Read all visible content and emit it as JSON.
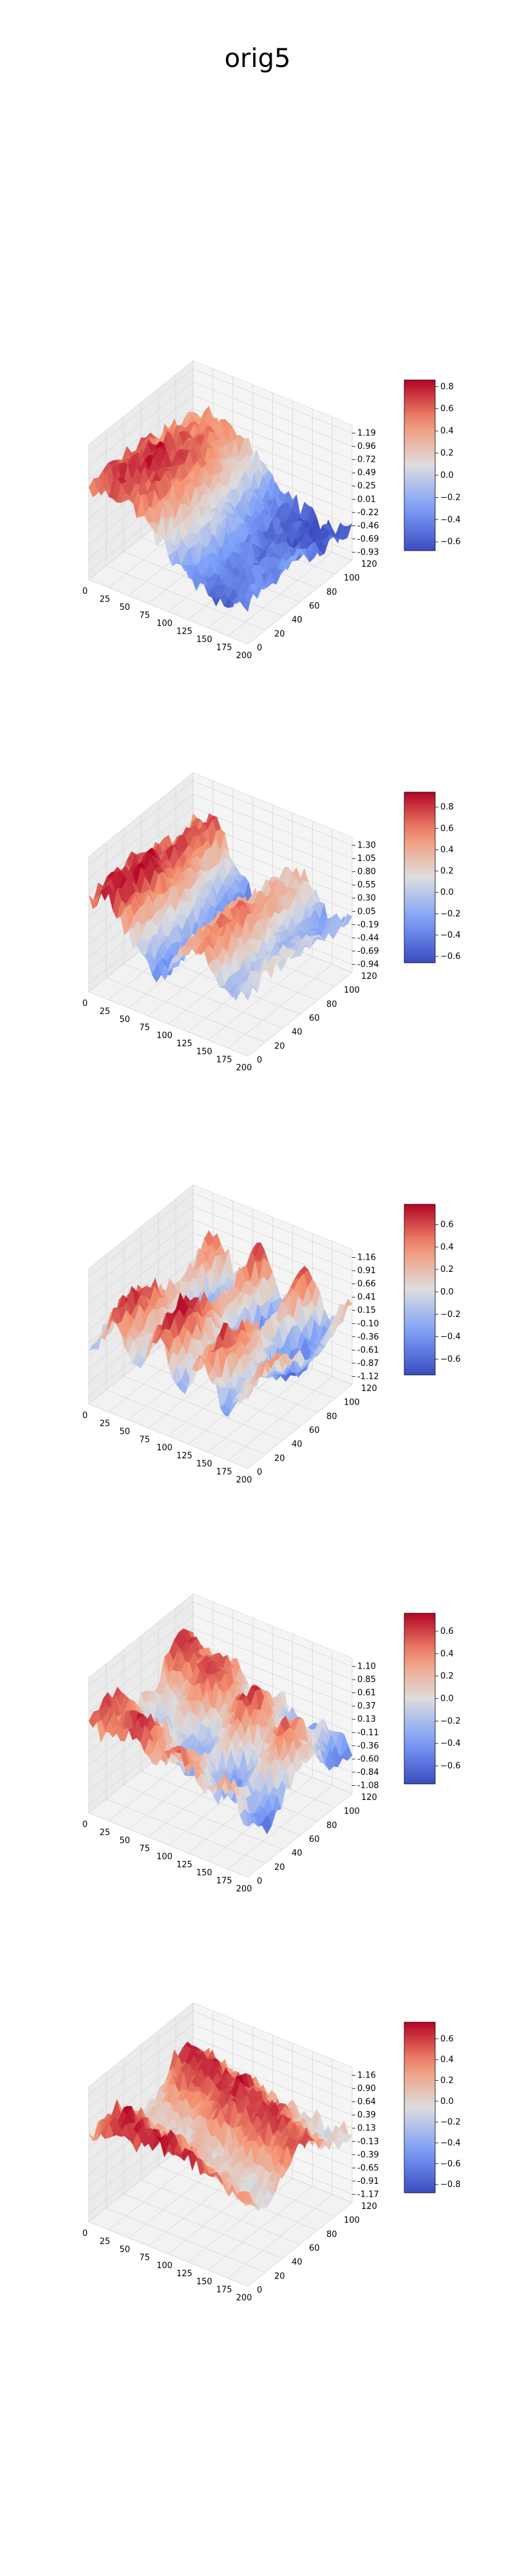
{
  "figure": {
    "title": "orig5"
  },
  "chart_data": [
    {
      "type": "surface3d",
      "x_ticks": [
        "0",
        "25",
        "50",
        "75",
        "100",
        "125",
        "150",
        "175",
        "200"
      ],
      "y_ticks": [
        "0",
        "20",
        "40",
        "60",
        "80",
        "100",
        "120"
      ],
      "z_ticks": [
        "1.19",
        "0.96",
        "0.72",
        "0.49",
        "0.25",
        "0.01",
        "-0.22",
        "-0.46",
        "-0.69",
        "-0.93"
      ],
      "colorbar_ticks": [
        "0.8",
        "0.6",
        "0.4",
        "0.2",
        "0.0",
        "−0.2",
        "−0.4",
        "−0.6"
      ],
      "colorbar_range": [
        -0.68,
        0.86
      ],
      "colormap": "coolwarm",
      "pattern": "wave",
      "profile": [
        0.55,
        0.7,
        0.62,
        0.15,
        -0.25,
        -0.55,
        -0.62,
        -0.45
      ]
    },
    {
      "type": "surface3d",
      "x_ticks": [
        "0",
        "25",
        "50",
        "75",
        "100",
        "125",
        "150",
        "175",
        "200"
      ],
      "y_ticks": [
        "0",
        "20",
        "40",
        "60",
        "80",
        "100",
        "120"
      ],
      "z_ticks": [
        "1.30",
        "1.05",
        "0.80",
        "0.55",
        "0.30",
        "0.05",
        "-0.19",
        "-0.44",
        "-0.69",
        "-0.94"
      ],
      "colorbar_ticks": [
        "0.8",
        "0.6",
        "0.4",
        "0.2",
        "0.0",
        "−0.2",
        "−0.4",
        "−0.6"
      ],
      "colorbar_range": [
        -0.66,
        0.94
      ],
      "colormap": "coolwarm",
      "pattern": "wave",
      "profile": [
        0.7,
        0.9,
        0.1,
        -0.5,
        0.4,
        0.55,
        -0.2,
        0.05
      ]
    },
    {
      "type": "surface3d",
      "x_ticks": [
        "0",
        "25",
        "50",
        "75",
        "100",
        "125",
        "150",
        "175",
        "200"
      ],
      "y_ticks": [
        "0",
        "20",
        "40",
        "60",
        "80",
        "100",
        "120"
      ],
      "z_ticks": [
        "1.16",
        "0.91",
        "0.66",
        "0.41",
        "0.15",
        "-0.10",
        "-0.36",
        "-0.61",
        "-0.87",
        "-1.12"
      ],
      "colorbar_ticks": [
        "0.6",
        "0.4",
        "0.2",
        "0.0",
        "−0.2",
        "−0.4",
        "−0.6"
      ],
      "colorbar_range": [
        -0.74,
        0.78
      ],
      "colormap": "coolwarm",
      "pattern": "ridges",
      "profile": [
        -0.4,
        0.6,
        -0.3,
        0.75,
        -0.4,
        0.55,
        -0.5,
        0.2
      ]
    },
    {
      "type": "surface3d",
      "x_ticks": [
        "0",
        "25",
        "50",
        "75",
        "100",
        "125",
        "150",
        "175",
        "200"
      ],
      "y_ticks": [
        "0",
        "20",
        "40",
        "60",
        "80",
        "100",
        "120"
      ],
      "z_ticks": [
        "1.10",
        "0.85",
        "0.61",
        "0.37",
        "0.13",
        "-0.11",
        "-0.36",
        "-0.60",
        "-0.84",
        "-1.08"
      ],
      "colorbar_ticks": [
        "0.6",
        "0.4",
        "0.2",
        "0.0",
        "−0.2",
        "−0.4",
        "−0.6"
      ],
      "colorbar_range": [
        -0.76,
        0.76
      ],
      "colormap": "coolwarm",
      "pattern": "grid",
      "profile": [
        0.5,
        0.2,
        0.55,
        -0.2,
        0.45,
        -0.3,
        0.3,
        -0.35
      ]
    },
    {
      "type": "surface3d",
      "x_ticks": [
        "0",
        "25",
        "50",
        "75",
        "100",
        "125",
        "150",
        "175",
        "200"
      ],
      "y_ticks": [
        "0",
        "20",
        "40",
        "60",
        "80",
        "100",
        "120"
      ],
      "z_ticks": [
        "1.16",
        "0.90",
        "0.64",
        "0.39",
        "0.13",
        "-0.13",
        "-0.39",
        "-0.65",
        "-0.91",
        "-1.17"
      ],
      "colorbar_ticks": [
        "0.6",
        "0.4",
        "0.2",
        "0.0",
        "−0.2",
        "−0.4",
        "−0.6",
        "−0.8"
      ],
      "colorbar_range": [
        -0.88,
        0.76
      ],
      "colormap": "coolwarm",
      "pattern": "grid",
      "profile": [
        0.35,
        0.55,
        0.4,
        0.6,
        0.45,
        0.5,
        0.3,
        0.4
      ]
    }
  ]
}
